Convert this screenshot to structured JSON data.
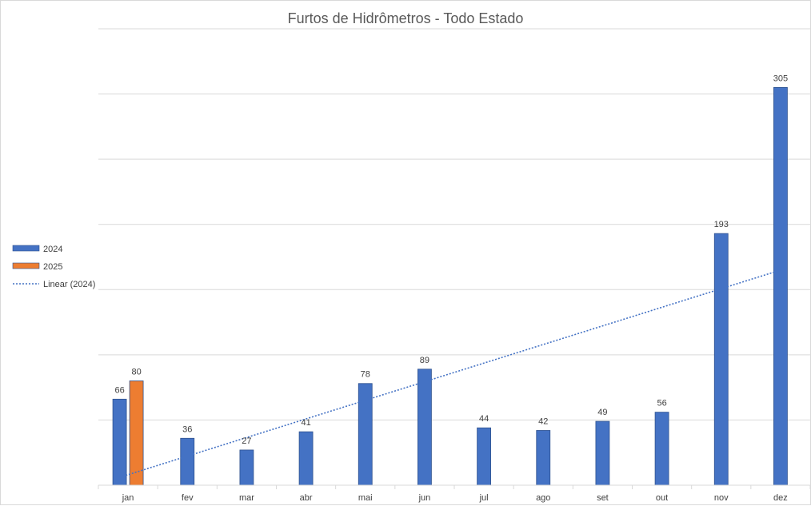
{
  "chart_data": {
    "type": "bar",
    "title": "Furtos de Hidrômetros - Todo Estado",
    "xlabel": "",
    "ylabel": "",
    "categories": [
      "jan",
      "fev",
      "mar",
      "abr",
      "mai",
      "jun",
      "jul",
      "ago",
      "set",
      "out",
      "nov",
      "dez"
    ],
    "series": [
      {
        "name": "2024",
        "color": "#4472c4",
        "values": [
          66,
          36,
          27,
          41,
          78,
          89,
          44,
          42,
          49,
          56,
          193,
          305
        ]
      },
      {
        "name": "2025",
        "color": "#ed7d31",
        "values": [
          80,
          null,
          null,
          null,
          null,
          null,
          null,
          null,
          null,
          null,
          null,
          null
        ]
      }
    ],
    "trendline": {
      "name": "Linear (2024)",
      "type": "linear",
      "of_series": "2024",
      "color": "#4472c4",
      "style": "dotted"
    },
    "ylim": [
      0,
      350
    ],
    "y_gridline_step": 50,
    "y_tick_labels_shown": false,
    "grid": true,
    "legend_position": "left"
  }
}
